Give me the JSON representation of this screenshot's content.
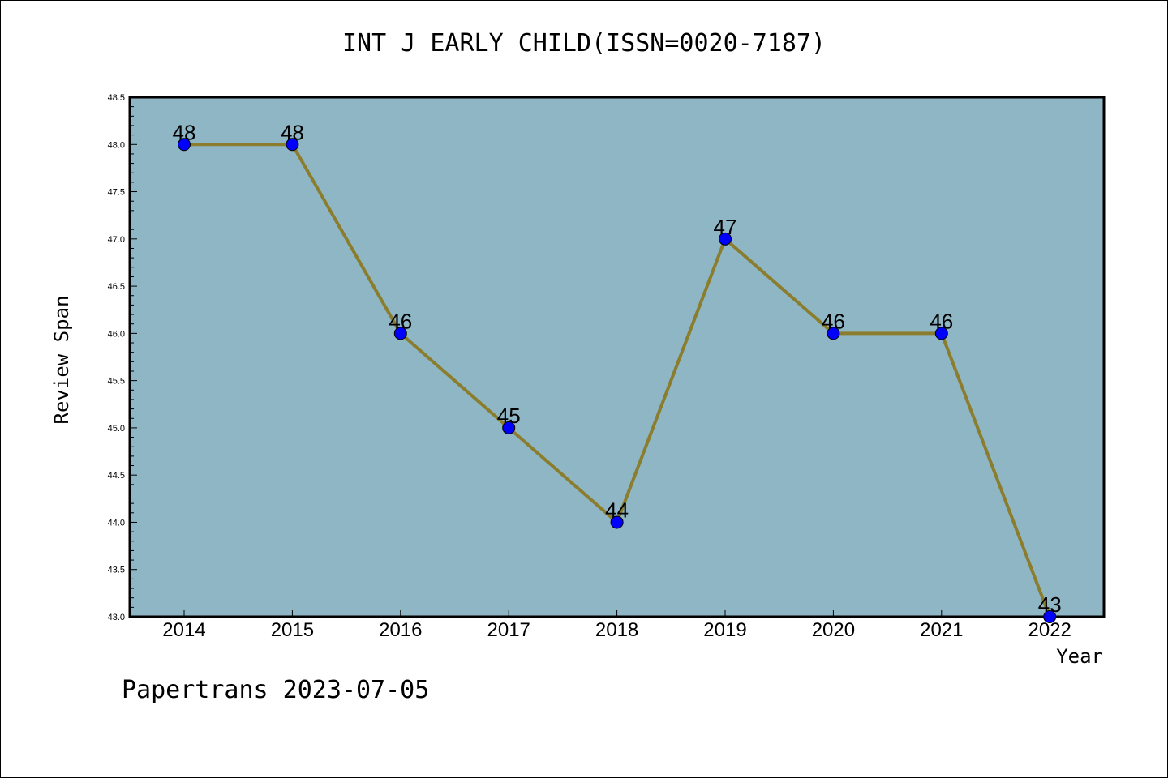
{
  "chart_data": {
    "type": "line",
    "title": "INT J EARLY CHILD(ISSN=0020-7187)",
    "xlabel": "Year",
    "ylabel": "Review Span",
    "categories": [
      "2014",
      "2015",
      "2016",
      "2017",
      "2018",
      "2019",
      "2020",
      "2021",
      "2022"
    ],
    "values": [
      48,
      48,
      46,
      45,
      44,
      47,
      46,
      46,
      43
    ],
    "data_labels": [
      "48",
      "48",
      "46",
      "45",
      "44",
      "47",
      "46",
      "46",
      "43"
    ],
    "yticks": [
      "43.0",
      "43.5",
      "44.0",
      "44.5",
      "45.0",
      "45.5",
      "46.0",
      "46.5",
      "47.0",
      "47.5",
      "48.0",
      "48.5"
    ],
    "ylim": [
      43.0,
      48.5
    ],
    "grid": false,
    "colors": {
      "plot_background": "#8fb6c5",
      "line": "#8b7d2e",
      "marker": "#0000ff"
    }
  },
  "footer": "Papertrans 2023-07-05"
}
